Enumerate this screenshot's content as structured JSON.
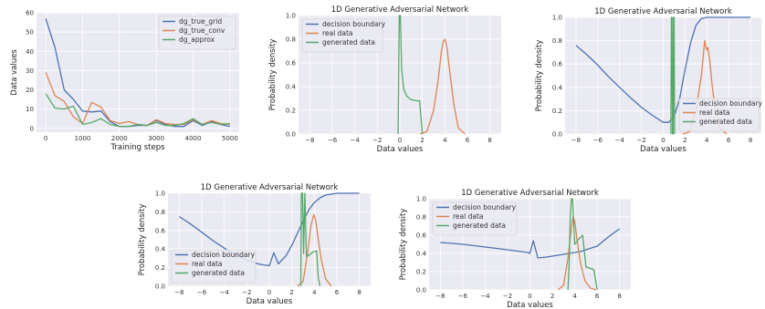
{
  "colors": {
    "blue": "#4c72b0",
    "orange": "#dd8452",
    "green": "#55a868"
  },
  "chart_data": [
    {
      "type": "line",
      "title": "",
      "xlabel": "Training steps",
      "ylabel": "Data values",
      "xlim": [
        -250,
        5250
      ],
      "ylim": [
        -2,
        60
      ],
      "xticks": [
        0,
        1000,
        2000,
        3000,
        4000,
        5000
      ],
      "yticks": [
        0,
        10,
        20,
        30,
        40,
        50,
        60
      ],
      "legend_position": "top-right",
      "series": [
        {
          "name": "dg_true_grid",
          "color": "#4c72b0",
          "x": [
            0,
            250,
            500,
            750,
            1000,
            1250,
            1500,
            1750,
            2000,
            2250,
            2500,
            2750,
            3000,
            3250,
            3500,
            3750,
            4000,
            4250,
            4500,
            4750,
            5000
          ],
          "y": [
            57,
            42,
            20,
            15,
            9,
            8.5,
            9,
            3.5,
            1,
            1,
            1.5,
            1.5,
            4,
            2,
            1,
            1,
            4,
            1.5,
            3.5,
            2,
            1
          ]
        },
        {
          "name": "dg_true_conv",
          "color": "#dd8452",
          "x": [
            0,
            250,
            500,
            750,
            1000,
            1250,
            1500,
            1750,
            2000,
            2250,
            2500,
            2750,
            3000,
            3250,
            3500,
            3750,
            4000,
            4250,
            4500,
            4750,
            5000
          ],
          "y": [
            29,
            17,
            14,
            6,
            2.5,
            13.5,
            11,
            4,
            2.5,
            3.5,
            2,
            1.5,
            4.5,
            2.5,
            2,
            2,
            4.5,
            2,
            4,
            2.5,
            2
          ]
        },
        {
          "name": "dg_approx",
          "color": "#55a868",
          "x": [
            0,
            250,
            500,
            750,
            1000,
            1250,
            1500,
            1750,
            2000,
            2250,
            2500,
            2750,
            3000,
            3250,
            3500,
            3750,
            4000,
            4250,
            4500,
            4750,
            5000
          ],
          "y": [
            18,
            10.5,
            10,
            11.5,
            2,
            3,
            5,
            2,
            1,
            1,
            2,
            1.5,
            3,
            1.5,
            1.5,
            2.5,
            5,
            2,
            3,
            2,
            2.5
          ]
        }
      ]
    },
    {
      "type": "line",
      "title": "1D Generative Adversarial Network",
      "xlabel": "Data values",
      "ylabel": "Probability density",
      "xlim": [
        -9,
        9
      ],
      "ylim": [
        0,
        1.0
      ],
      "xticks": [
        -8,
        -6,
        -4,
        -2,
        0,
        2,
        4,
        6,
        8
      ],
      "yticks": [
        0.0,
        0.2,
        0.4,
        0.6,
        0.8,
        1.0
      ],
      "legend_position": "top-left",
      "series": [
        {
          "name": "decision boundary",
          "color": "#4c72b0",
          "x": [],
          "y": []
        },
        {
          "name": "real data",
          "color": "#dd8452",
          "x": [
            1.8,
            2.4,
            3.0,
            3.4,
            3.7,
            3.85,
            4.0,
            4.15,
            4.4,
            4.8,
            5.2,
            5.8
          ],
          "y": [
            0,
            0.02,
            0.2,
            0.45,
            0.7,
            0.78,
            0.8,
            0.75,
            0.55,
            0.25,
            0.05,
            0
          ]
        },
        {
          "name": "generated data",
          "color": "#55a868",
          "x": [
            -0.15,
            -0.05,
            0.05,
            0.15,
            0.35,
            0.6,
            1.0,
            1.5,
            1.75,
            2.0
          ],
          "y": [
            0,
            1.0,
            1.0,
            0.55,
            0.38,
            0.32,
            0.29,
            0.28,
            0.28,
            0
          ]
        }
      ]
    },
    {
      "type": "line",
      "title": "1D Generative Adversarial Network",
      "xlabel": "Data values",
      "ylabel": "Probability density",
      "xlim": [
        -9,
        9
      ],
      "ylim": [
        0,
        1.0
      ],
      "xticks": [
        -8,
        -6,
        -4,
        -2,
        0,
        2,
        4,
        6,
        8
      ],
      "yticks": [
        0.0,
        0.2,
        0.4,
        0.6,
        0.8,
        1.0
      ],
      "legend_position": "bottom-right",
      "series": [
        {
          "name": "decision boundary",
          "color": "#4c72b0",
          "x": [
            -8,
            -7,
            -6,
            -5,
            -4,
            -3,
            -2,
            -1,
            0,
            0.5,
            0.7,
            1,
            1.5,
            2,
            2.5,
            3,
            3.5,
            4,
            8
          ],
          "y": [
            0.76,
            0.68,
            0.59,
            0.49,
            0.4,
            0.31,
            0.23,
            0.16,
            0.1,
            0.1,
            0.12,
            0.15,
            0.3,
            0.55,
            0.78,
            0.93,
            0.99,
            1.0,
            1.0
          ]
        },
        {
          "name": "real data",
          "color": "#dd8452",
          "x": [
            1.8,
            2.4,
            3.0,
            3.5,
            3.8,
            4.0,
            4.1,
            4.3,
            4.5,
            4.8,
            5.2,
            5.8
          ],
          "y": [
            0,
            0.02,
            0.2,
            0.5,
            0.8,
            0.72,
            0.74,
            0.6,
            0.4,
            0.2,
            0.05,
            0
          ]
        },
        {
          "name": "generated data",
          "color": "#55a868",
          "x": [
            0.7,
            0.75,
            0.8,
            0.85,
            0.9,
            0.95,
            1.0,
            1.05
          ],
          "y": [
            0,
            1.0,
            1.0,
            0,
            0,
            1.0,
            1.0,
            0
          ]
        }
      ]
    },
    {
      "type": "line",
      "title": "1D Generative Adversarial Network",
      "xlabel": "Data values",
      "ylabel": "Probability density",
      "xlim": [
        -9,
        9
      ],
      "ylim": [
        0,
        1.0
      ],
      "xticks": [
        -8,
        -6,
        -4,
        -2,
        0,
        2,
        4,
        6,
        8
      ],
      "yticks": [
        0.0,
        0.2,
        0.4,
        0.6,
        0.8,
        1.0
      ],
      "legend_position": "bottom-left",
      "series": [
        {
          "name": "decision boundary",
          "color": "#4c72b0",
          "x": [
            -8,
            -7,
            -6,
            -5,
            -4,
            -3,
            -2,
            -1,
            0,
            0.4,
            0.8,
            1.5,
            2,
            2.5,
            3,
            3.5,
            4,
            4.5,
            5,
            6,
            7,
            8
          ],
          "y": [
            0.75,
            0.67,
            0.58,
            0.49,
            0.41,
            0.34,
            0.28,
            0.24,
            0.22,
            0.36,
            0.24,
            0.33,
            0.44,
            0.57,
            0.7,
            0.82,
            0.9,
            0.95,
            0.98,
            1.0,
            1.0,
            1.0
          ]
        },
        {
          "name": "real data",
          "color": "#dd8452",
          "x": [
            2.5,
            3.0,
            3.4,
            3.7,
            3.95,
            4.1,
            4.3,
            4.6,
            5.0,
            5.5
          ],
          "y": [
            0,
            0.05,
            0.35,
            0.65,
            0.77,
            0.72,
            0.55,
            0.3,
            0.08,
            0
          ]
        },
        {
          "name": "generated data",
          "color": "#55a868",
          "x": [
            2.8,
            2.85,
            2.95,
            3.05,
            3.15,
            3.3,
            3.6,
            3.9,
            4.2,
            4.35,
            4.5
          ],
          "y": [
            0,
            1.0,
            1.0,
            0.35,
            1.0,
            0.32,
            0.34,
            0.37,
            0.38,
            0.1,
            0
          ]
        }
      ]
    },
    {
      "type": "line",
      "title": "1D Generative Adversarial Network",
      "xlabel": "Data values",
      "ylabel": "Probability density",
      "xlim": [
        -9,
        9
      ],
      "ylim": [
        0,
        1.0
      ],
      "xticks": [
        -8,
        -6,
        -4,
        -2,
        0,
        2,
        4,
        6,
        8
      ],
      "yticks": [
        0.0,
        0.2,
        0.4,
        0.6,
        0.8,
        1.0
      ],
      "legend_position": "top-left",
      "series": [
        {
          "name": "decision boundary",
          "color": "#4c72b0",
          "x": [
            -8,
            -6,
            -4,
            -2,
            -0.2,
            0,
            0.3,
            0.7,
            1.5,
            3,
            4.5,
            6,
            7,
            8
          ],
          "y": [
            0.52,
            0.5,
            0.47,
            0.44,
            0.41,
            0.4,
            0.54,
            0.35,
            0.36,
            0.39,
            0.42,
            0.48,
            0.58,
            0.67
          ]
        },
        {
          "name": "real data",
          "color": "#dd8452",
          "x": [
            2.5,
            3.0,
            3.4,
            3.7,
            3.85,
            4.0,
            4.2,
            4.5,
            4.9,
            5.4,
            5.9
          ],
          "y": [
            0,
            0.05,
            0.35,
            0.68,
            0.8,
            0.75,
            0.55,
            0.3,
            0.1,
            0.02,
            0
          ]
        },
        {
          "name": "generated data",
          "color": "#55a868",
          "x": [
            3.4,
            3.5,
            3.6,
            3.7,
            3.8,
            3.9,
            4.0,
            4.3,
            4.7,
            5.0,
            5.3,
            5.7,
            6.0
          ],
          "y": [
            0,
            0.3,
            0.8,
            1.0,
            1.0,
            0.75,
            0.5,
            0.55,
            0.6,
            0.25,
            0.24,
            0.22,
            0
          ]
        }
      ]
    }
  ]
}
